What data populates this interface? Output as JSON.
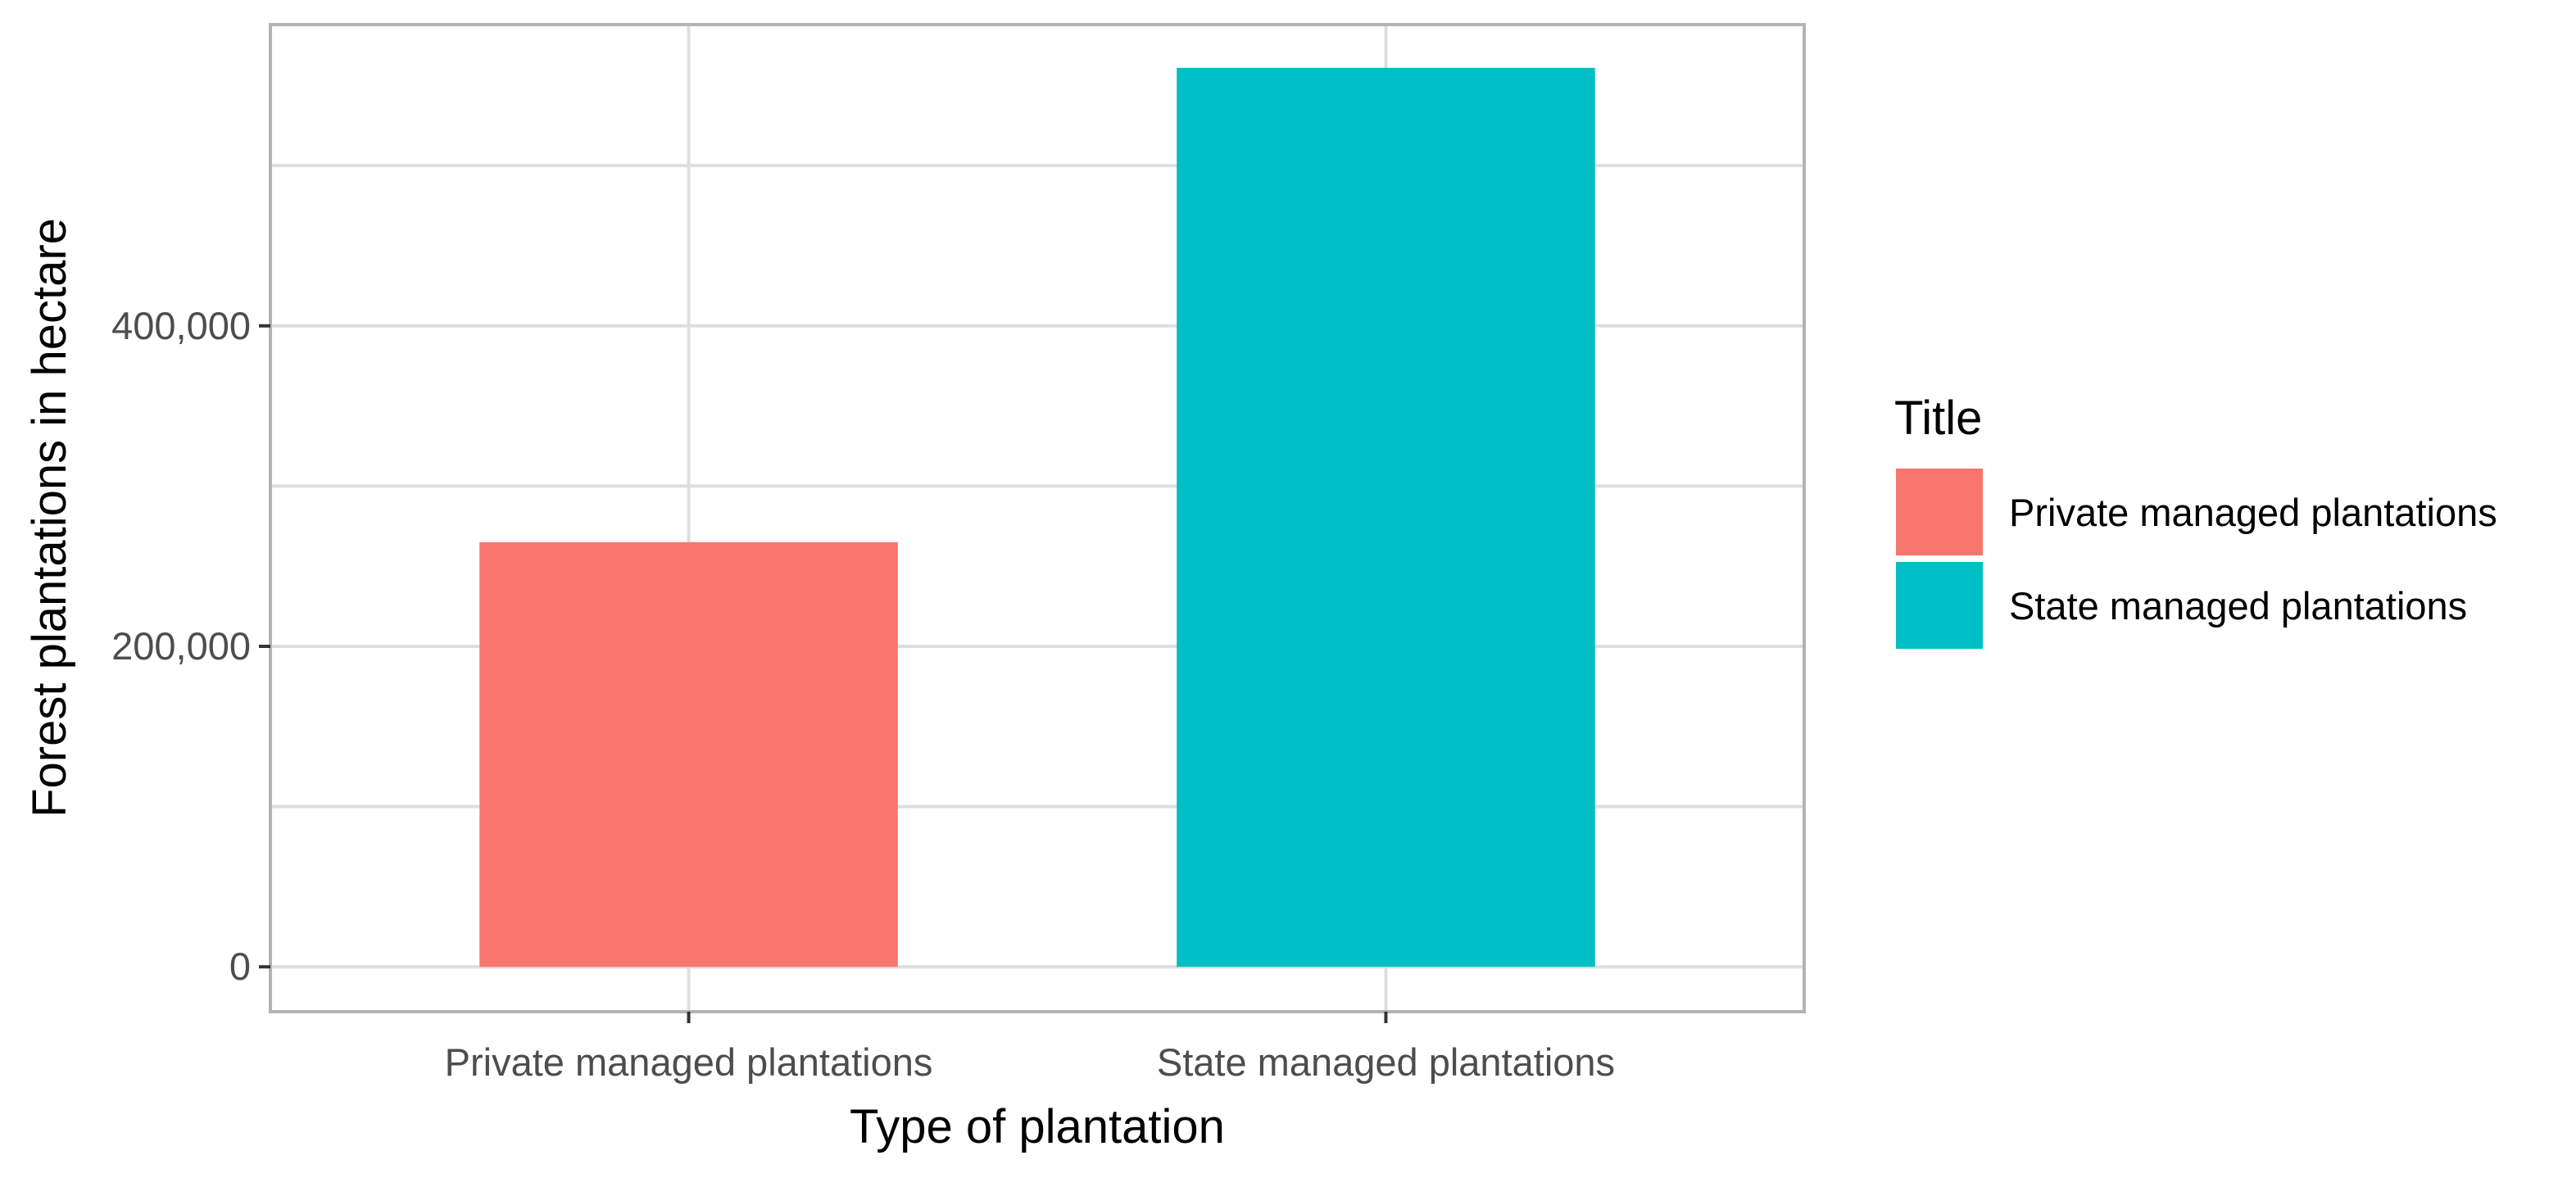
{
  "chart_data": {
    "type": "bar",
    "categories": [
      "Private managed plantations",
      "State managed plantations"
    ],
    "values": [
      265000,
      561000
    ],
    "xlabel": "Type of plantation",
    "ylabel": "Forest plantations in hectare",
    "ylim": [
      -28000,
      588000
    ],
    "y_ticks": [
      0,
      200000,
      400000
    ],
    "y_tick_labels": [
      "0",
      "200,000",
      "400,000"
    ],
    "y_minor_ticks": [
      100000,
      300000,
      500000
    ],
    "grid": true,
    "colors": [
      "#F8766D",
      "#00BFC4"
    ],
    "legend": {
      "title": "Title",
      "position": "right",
      "entries": [
        "Private managed plantations",
        "State managed plantations"
      ]
    }
  }
}
